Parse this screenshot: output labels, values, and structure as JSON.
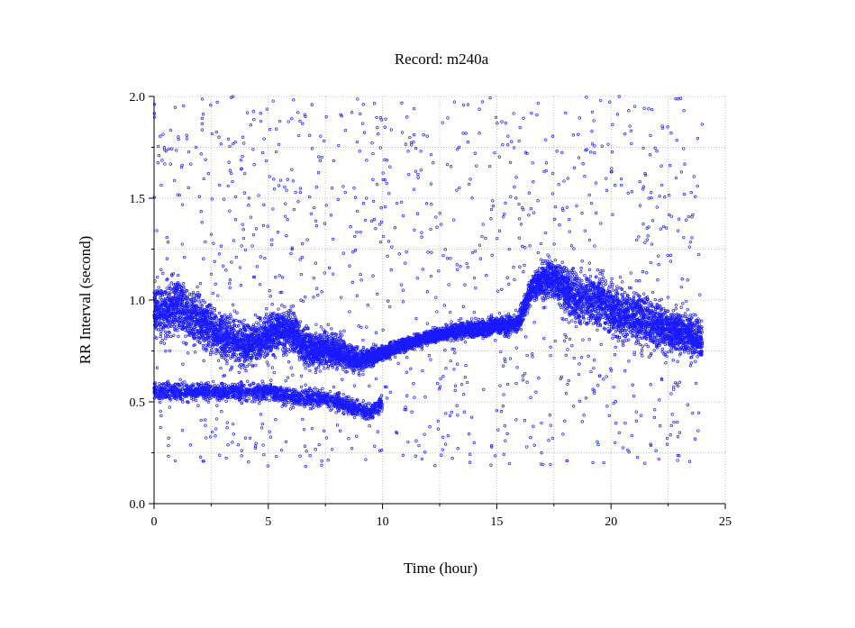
{
  "chart_data": {
    "type": "scatter",
    "title": "Record:  m240a",
    "xlabel": "Time (hour)",
    "ylabel": "RR Interval (second)",
    "xlim": [
      0,
      25
    ],
    "ylim": [
      0,
      2.0
    ],
    "xticks": [
      0,
      5,
      10,
      15,
      20,
      25
    ],
    "xtick_labels": [
      "0",
      "5",
      "10",
      "15",
      "20",
      "25"
    ],
    "yticks": [
      0.0,
      0.5,
      1.0,
      1.5,
      2.0
    ],
    "ytick_labels": [
      "0.0",
      "0.5",
      "1.0",
      "1.5",
      "2.0"
    ],
    "grid": true,
    "marker_color": "#1a1aff",
    "series": [
      {
        "x_range": [
          0,
          24.0
        ],
        "trend": {
          "x": [
            0,
            0.5,
            1,
            1.5,
            2,
            2.5,
            3,
            3.5,
            4,
            4.5,
            5,
            5.5,
            6,
            6.5,
            7,
            7.5,
            8,
            8.5,
            9,
            9.5,
            10,
            10.5,
            11,
            11.5,
            12,
            12.5,
            13,
            13.5,
            14,
            14.5,
            15,
            15.5,
            16,
            16.5,
            17,
            17.5,
            18,
            18.5,
            19,
            19.5,
            20,
            20.5,
            21,
            21.5,
            22,
            22.5,
            23,
            23.5,
            24
          ],
          "y": [
            0.95,
            0.95,
            0.98,
            0.92,
            0.9,
            0.85,
            0.82,
            0.8,
            0.78,
            0.8,
            0.82,
            0.85,
            0.86,
            0.78,
            0.74,
            0.76,
            0.74,
            0.72,
            0.7,
            0.72,
            0.74,
            0.76,
            0.78,
            0.8,
            0.82,
            0.83,
            0.84,
            0.85,
            0.86,
            0.86,
            0.88,
            0.87,
            0.9,
            1.05,
            1.1,
            1.1,
            1.06,
            1.0,
            1.0,
            1.0,
            0.95,
            0.93,
            0.9,
            0.9,
            0.88,
            0.85,
            0.84,
            0.82,
            0.8
          ]
        },
        "spread": {
          "x": [
            0,
            2,
            4,
            6,
            8,
            10,
            12,
            14,
            16,
            18,
            20,
            22,
            24
          ],
          "y": [
            0.2,
            0.2,
            0.15,
            0.15,
            0.12,
            0.06,
            0.05,
            0.06,
            0.08,
            0.18,
            0.2,
            0.18,
            0.15
          ]
        },
        "low_cluster": {
          "x": [
            0,
            0.5,
            1,
            1.5,
            2,
            2.5,
            3,
            5,
            6,
            7,
            8,
            8.5,
            9,
            9.5,
            10
          ],
          "y": [
            0.55,
            0.55,
            0.55,
            0.55,
            0.55,
            0.55,
            0.55,
            0.55,
            0.52,
            0.52,
            0.5,
            0.48,
            0.46,
            0.45,
            0.5
          ]
        },
        "outlier_range": [
          0.18,
          2.0
        ]
      }
    ]
  }
}
